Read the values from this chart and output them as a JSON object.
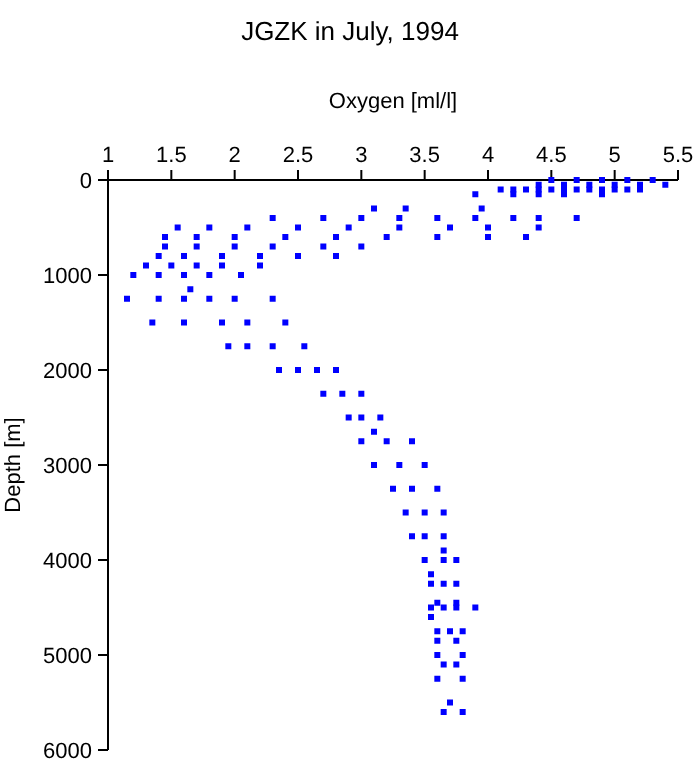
{
  "chart_data": {
    "type": "scatter",
    "title": "JGZK in July, 1994",
    "xlabel": "Oxygen [ml/l]",
    "ylabel": "Depth [m]",
    "xlim": [
      1,
      5.5
    ],
    "xticks": [
      1,
      1.5,
      2,
      2.5,
      3,
      3.5,
      4,
      4.5,
      5,
      5.5
    ],
    "ylim": [
      6000,
      0
    ],
    "yticks": [
      0,
      1000,
      2000,
      3000,
      4000,
      5000,
      6000
    ],
    "grid": false,
    "marker": "square",
    "series": [
      {
        "color": "#0000ff",
        "x": [
          4.5,
          4.7,
          4.9,
          5.1,
          5.3,
          4.4,
          4.6,
          4.8,
          5.0,
          5.2,
          5.4,
          4.2,
          4.4,
          4.6,
          4.8,
          5.0,
          5.2,
          4.1,
          4.3,
          4.5,
          4.7,
          4.9,
          5.1,
          3.9,
          4.2,
          4.4,
          4.6,
          4.9,
          3.1,
          3.35,
          3.95,
          2.3,
          2.7,
          3.0,
          3.3,
          3.6,
          3.9,
          4.2,
          4.4,
          4.7,
          1.55,
          1.8,
          2.1,
          2.5,
          2.9,
          3.3,
          3.7,
          4.0,
          4.4,
          1.45,
          1.7,
          2.0,
          2.4,
          2.8,
          3.2,
          3.6,
          4.0,
          4.3,
          1.45,
          1.7,
          2.0,
          2.3,
          2.7,
          3.0,
          1.4,
          1.6,
          1.9,
          2.2,
          2.5,
          2.8,
          1.3,
          1.5,
          1.7,
          1.9,
          2.2,
          1.2,
          1.4,
          1.6,
          1.8,
          2.05,
          1.65,
          1.15,
          1.4,
          1.6,
          1.8,
          2.0,
          2.3,
          1.35,
          1.6,
          1.9,
          2.1,
          2.4,
          1.95,
          2.1,
          2.3,
          2.55,
          2.35,
          2.5,
          2.65,
          2.8,
          2.7,
          2.85,
          3.0,
          2.9,
          3.0,
          3.15,
          3.1,
          3.0,
          3.2,
          3.4,
          3.1,
          3.3,
          3.5,
          3.25,
          3.4,
          3.6,
          3.35,
          3.5,
          3.65,
          3.4,
          3.5,
          3.65,
          3.65,
          3.5,
          3.65,
          3.75,
          3.55,
          3.55,
          3.65,
          3.75,
          3.6,
          3.75,
          3.55,
          3.65,
          3.75,
          3.9,
          3.55,
          3.6,
          3.7,
          3.8,
          3.6,
          3.75,
          3.6,
          3.8,
          3.65,
          3.75,
          3.6,
          3.8,
          3.7,
          3.65,
          3.8
        ],
        "values": [
          0,
          0,
          0,
          0,
          0,
          50,
          50,
          50,
          50,
          50,
          50,
          100,
          100,
          100,
          100,
          100,
          100,
          100,
          100,
          100,
          100,
          100,
          100,
          150,
          150,
          150,
          150,
          150,
          300,
          300,
          300,
          400,
          400,
          400,
          400,
          400,
          400,
          400,
          400,
          400,
          500,
          500,
          500,
          500,
          500,
          500,
          500,
          500,
          500,
          600,
          600,
          600,
          600,
          600,
          600,
          600,
          600,
          600,
          700,
          700,
          700,
          700,
          700,
          700,
          800,
          800,
          800,
          800,
          800,
          800,
          900,
          900,
          900,
          900,
          900,
          1000,
          1000,
          1000,
          1000,
          1000,
          1150,
          1250,
          1250,
          1250,
          1250,
          1250,
          1250,
          1500,
          1500,
          1500,
          1500,
          1500,
          1750,
          1750,
          1750,
          1750,
          2000,
          2000,
          2000,
          2000,
          2250,
          2250,
          2250,
          2500,
          2500,
          2500,
          2650,
          2750,
          2750,
          2750,
          3000,
          3000,
          3000,
          3250,
          3250,
          3250,
          3500,
          3500,
          3500,
          3750,
          3750,
          3750,
          3900,
          4000,
          4000,
          4000,
          4150,
          4250,
          4250,
          4250,
          4450,
          4450,
          4500,
          4500,
          4500,
          4500,
          4600,
          4750,
          4750,
          4750,
          4850,
          4850,
          5000,
          5000,
          5100,
          5100,
          5250,
          5250,
          5500,
          5600,
          5600
        ]
      }
    ]
  }
}
